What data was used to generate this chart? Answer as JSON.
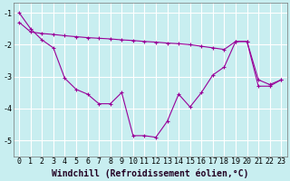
{
  "series1_x": [
    0,
    1,
    2,
    3,
    4,
    5,
    6,
    7,
    8,
    9,
    10,
    11,
    12,
    13,
    14,
    15,
    16,
    17,
    18,
    19,
    20,
    21,
    22,
    23
  ],
  "series1_y": [
    -1.3,
    -1.6,
    -1.65,
    -1.68,
    -1.72,
    -1.75,
    -1.78,
    -1.8,
    -1.82,
    -1.85,
    -1.87,
    -1.9,
    -1.92,
    -1.95,
    -1.97,
    -2.0,
    -2.05,
    -2.1,
    -2.15,
    -1.9,
    -1.9,
    -3.1,
    -3.25,
    -3.1
  ],
  "series2_x": [
    0,
    1,
    2,
    3,
    4,
    5,
    6,
    7,
    8,
    9,
    10,
    11,
    12,
    13,
    14,
    15,
    16,
    17,
    18,
    19,
    20,
    21,
    22,
    23
  ],
  "series2_y": [
    -1.0,
    -1.5,
    -1.85,
    -2.1,
    -3.05,
    -3.4,
    -3.55,
    -3.85,
    -3.85,
    -3.5,
    -4.85,
    -4.85,
    -4.9,
    -4.4,
    -3.55,
    -3.95,
    -3.5,
    -2.95,
    -2.7,
    -1.9,
    -1.9,
    -3.3,
    -3.3,
    -3.1
  ],
  "color": "#990099",
  "bg_color": "#c8eef0",
  "grid_color": "#ffffff",
  "xlabel": "Windchill (Refroidissement éolien,°C)",
  "xlim_min": -0.5,
  "xlim_max": 23.5,
  "ylim": [
    -5.5,
    -0.7
  ],
  "yticks": [
    -5,
    -4,
    -3,
    -2,
    -1
  ],
  "xticks": [
    0,
    1,
    2,
    3,
    4,
    5,
    6,
    7,
    8,
    9,
    10,
    11,
    12,
    13,
    14,
    15,
    16,
    17,
    18,
    19,
    20,
    21,
    22,
    23
  ],
  "tick_fontsize": 6,
  "xlabel_fontsize": 7
}
